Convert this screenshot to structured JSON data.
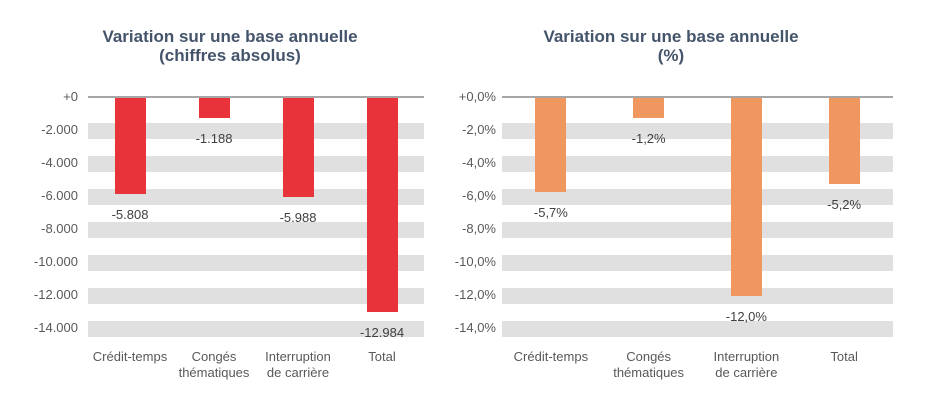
{
  "figure": {
    "background_color": "#FFFFFF",
    "title_color": "#44546A",
    "grid_band_color": "#E0E0E0",
    "axis_line_color": "#A6A6A6",
    "tick_label_color": "#595959",
    "value_label_color": "#404040"
  },
  "chart_data": [
    {
      "type": "bar",
      "title": "Variation sur une base annuelle",
      "subtitle": "(chiffres absolus)",
      "categories": [
        "Crédit-temps",
        "Congés thématiques",
        "Interruption de carrière",
        "Total"
      ],
      "category_lines": [
        [
          "Crédit-temps"
        ],
        [
          "Congés",
          "thématiques"
        ],
        [
          "Interruption",
          "de carrière"
        ],
        [
          "Total"
        ]
      ],
      "values": [
        -5808,
        -1188,
        -5988,
        -12984
      ],
      "data_labels": [
        "-5.808",
        "-1.188",
        "-5.988",
        "-12.984"
      ],
      "y_ticks": [
        "+0",
        "-2.000",
        "-4.000",
        "-6.000",
        "-8.000",
        "-10.000",
        "-12.000",
        "-14.000"
      ],
      "y_tick_values": [
        0,
        -2000,
        -4000,
        -6000,
        -8000,
        -10000,
        -12000,
        -14000
      ],
      "ylim": [
        0,
        -14500
      ],
      "bar_color": "#E8333B",
      "grid": "striped horizontal bands centered on even ticks",
      "legend": "none"
    },
    {
      "type": "bar",
      "title": "Variation sur une base annuelle",
      "subtitle": "(%)",
      "categories": [
        "Crédit-temps",
        "Congés thématiques",
        "Interruption de carrière",
        "Total"
      ],
      "category_lines": [
        [
          "Crédit-temps"
        ],
        [
          "Congés",
          "thématiques"
        ],
        [
          "Interruption",
          "de carrière"
        ],
        [
          "Total"
        ]
      ],
      "values": [
        -5.7,
        -1.2,
        -12.0,
        -5.2
      ],
      "data_labels": [
        "-5,7%",
        "-1,2%",
        "-12,0%",
        "-5,2%"
      ],
      "y_ticks": [
        "+0,0%",
        "-2,0%",
        "-4,0%",
        "-6,0%",
        "-8,0%",
        "-10,0%",
        "-12,0%",
        "-14,0%"
      ],
      "y_tick_values": [
        0,
        -2,
        -4,
        -6,
        -8,
        -10,
        -12,
        -14
      ],
      "ylim": [
        0,
        -14.5
      ],
      "bar_color": "#F0975F",
      "grid": "striped horizontal bands centered on even ticks",
      "legend": "none"
    }
  ]
}
